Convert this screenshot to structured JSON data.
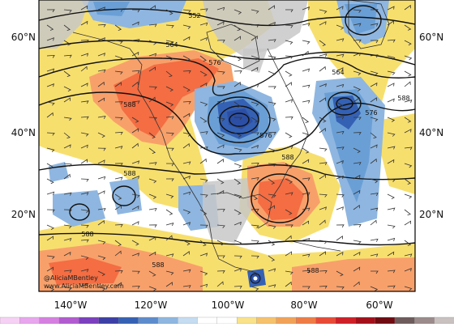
{
  "map": {
    "lat_labels_left": [
      "60°N",
      "40°N",
      "20°N"
    ],
    "lat_labels_right": [
      "60°N",
      "40°N",
      "20°N"
    ],
    "lon_labels": [
      "140°W",
      "120°W",
      "100°W",
      "80°W",
      "60°W"
    ],
    "credit": [
      "@AliciaMBentley",
      "www.AliciaMBentley.com"
    ]
  },
  "contours": {
    "labels": [
      "552",
      "564",
      "576",
      "588",
      "576",
      "564",
      "576",
      "588",
      "588",
      "588",
      "588",
      "588",
      "588"
    ]
  },
  "colors": {
    "ridge_orange": "#f46d43",
    "ridge_light": "#f8a06a",
    "warm_yellow": "#f7df6e",
    "trough_blue": "#6a9fd6",
    "trough_deep": "#2c4fa5",
    "land_gray": "#bfbfbf",
    "ocean_white": "#ffffff"
  },
  "colorbar": {
    "colors": [
      "#f7d1f5",
      "#e8a6ee",
      "#d67fe1",
      "#b25bd0",
      "#7b3fbf",
      "#3c3fa6",
      "#3561b4",
      "#5d8ccd",
      "#8eb6e0",
      "#c5dcf1",
      "#ffffff",
      "#ffffff",
      "#f9e28a",
      "#f6c26b",
      "#f2a257",
      "#ef7c45",
      "#e84a36",
      "#cf1f27",
      "#a40f1a",
      "#6f0b11",
      "#6e5b5b",
      "#9c8b8b",
      "#c9c0c0"
    ]
  }
}
